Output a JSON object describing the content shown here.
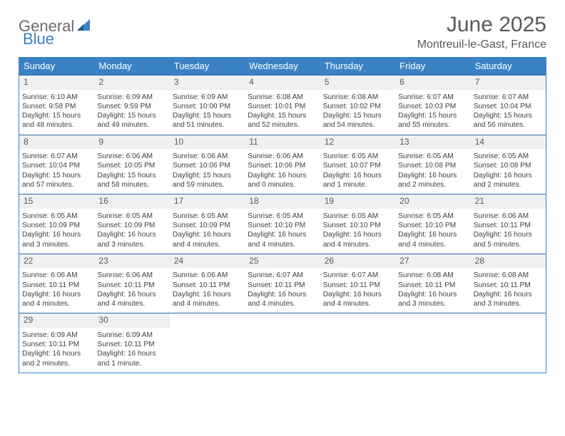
{
  "brand": {
    "part1": "General",
    "part2": "Blue"
  },
  "title": "June 2025",
  "location": "Montreuil-le-Gast, France",
  "colors": {
    "header_bg": "#3b82c4",
    "header_text": "#ffffff",
    "border": "#2b6ca8",
    "daynum_bg": "#eef0f1",
    "text": "#404040",
    "title_color": "#595959"
  },
  "weekdays": [
    "Sunday",
    "Monday",
    "Tuesday",
    "Wednesday",
    "Thursday",
    "Friday",
    "Saturday"
  ],
  "weeks": [
    [
      {
        "n": "1",
        "sr": "Sunrise: 6:10 AM",
        "ss": "Sunset: 9:58 PM",
        "dl": "Daylight: 15 hours and 48 minutes."
      },
      {
        "n": "2",
        "sr": "Sunrise: 6:09 AM",
        "ss": "Sunset: 9:59 PM",
        "dl": "Daylight: 15 hours and 49 minutes."
      },
      {
        "n": "3",
        "sr": "Sunrise: 6:09 AM",
        "ss": "Sunset: 10:00 PM",
        "dl": "Daylight: 15 hours and 51 minutes."
      },
      {
        "n": "4",
        "sr": "Sunrise: 6:08 AM",
        "ss": "Sunset: 10:01 PM",
        "dl": "Daylight: 15 hours and 52 minutes."
      },
      {
        "n": "5",
        "sr": "Sunrise: 6:08 AM",
        "ss": "Sunset: 10:02 PM",
        "dl": "Daylight: 15 hours and 54 minutes."
      },
      {
        "n": "6",
        "sr": "Sunrise: 6:07 AM",
        "ss": "Sunset: 10:03 PM",
        "dl": "Daylight: 15 hours and 55 minutes."
      },
      {
        "n": "7",
        "sr": "Sunrise: 6:07 AM",
        "ss": "Sunset: 10:04 PM",
        "dl": "Daylight: 15 hours and 56 minutes."
      }
    ],
    [
      {
        "n": "8",
        "sr": "Sunrise: 6:07 AM",
        "ss": "Sunset: 10:04 PM",
        "dl": "Daylight: 15 hours and 57 minutes."
      },
      {
        "n": "9",
        "sr": "Sunrise: 6:06 AM",
        "ss": "Sunset: 10:05 PM",
        "dl": "Daylight: 15 hours and 58 minutes."
      },
      {
        "n": "10",
        "sr": "Sunrise: 6:06 AM",
        "ss": "Sunset: 10:06 PM",
        "dl": "Daylight: 15 hours and 59 minutes."
      },
      {
        "n": "11",
        "sr": "Sunrise: 6:06 AM",
        "ss": "Sunset: 10:06 PM",
        "dl": "Daylight: 16 hours and 0 minutes."
      },
      {
        "n": "12",
        "sr": "Sunrise: 6:05 AM",
        "ss": "Sunset: 10:07 PM",
        "dl": "Daylight: 16 hours and 1 minute."
      },
      {
        "n": "13",
        "sr": "Sunrise: 6:05 AM",
        "ss": "Sunset: 10:08 PM",
        "dl": "Daylight: 16 hours and 2 minutes."
      },
      {
        "n": "14",
        "sr": "Sunrise: 6:05 AM",
        "ss": "Sunset: 10:08 PM",
        "dl": "Daylight: 16 hours and 2 minutes."
      }
    ],
    [
      {
        "n": "15",
        "sr": "Sunrise: 6:05 AM",
        "ss": "Sunset: 10:09 PM",
        "dl": "Daylight: 16 hours and 3 minutes."
      },
      {
        "n": "16",
        "sr": "Sunrise: 6:05 AM",
        "ss": "Sunset: 10:09 PM",
        "dl": "Daylight: 16 hours and 3 minutes."
      },
      {
        "n": "17",
        "sr": "Sunrise: 6:05 AM",
        "ss": "Sunset: 10:09 PM",
        "dl": "Daylight: 16 hours and 4 minutes."
      },
      {
        "n": "18",
        "sr": "Sunrise: 6:05 AM",
        "ss": "Sunset: 10:10 PM",
        "dl": "Daylight: 16 hours and 4 minutes."
      },
      {
        "n": "19",
        "sr": "Sunrise: 6:05 AM",
        "ss": "Sunset: 10:10 PM",
        "dl": "Daylight: 16 hours and 4 minutes."
      },
      {
        "n": "20",
        "sr": "Sunrise: 6:05 AM",
        "ss": "Sunset: 10:10 PM",
        "dl": "Daylight: 16 hours and 4 minutes."
      },
      {
        "n": "21",
        "sr": "Sunrise: 6:06 AM",
        "ss": "Sunset: 10:11 PM",
        "dl": "Daylight: 16 hours and 5 minutes."
      }
    ],
    [
      {
        "n": "22",
        "sr": "Sunrise: 6:06 AM",
        "ss": "Sunset: 10:11 PM",
        "dl": "Daylight: 16 hours and 4 minutes."
      },
      {
        "n": "23",
        "sr": "Sunrise: 6:06 AM",
        "ss": "Sunset: 10:11 PM",
        "dl": "Daylight: 16 hours and 4 minutes."
      },
      {
        "n": "24",
        "sr": "Sunrise: 6:06 AM",
        "ss": "Sunset: 10:11 PM",
        "dl": "Daylight: 16 hours and 4 minutes."
      },
      {
        "n": "25",
        "sr": "Sunrise: 6:07 AM",
        "ss": "Sunset: 10:11 PM",
        "dl": "Daylight: 16 hours and 4 minutes."
      },
      {
        "n": "26",
        "sr": "Sunrise: 6:07 AM",
        "ss": "Sunset: 10:11 PM",
        "dl": "Daylight: 16 hours and 4 minutes."
      },
      {
        "n": "27",
        "sr": "Sunrise: 6:08 AM",
        "ss": "Sunset: 10:11 PM",
        "dl": "Daylight: 16 hours and 3 minutes."
      },
      {
        "n": "28",
        "sr": "Sunrise: 6:08 AM",
        "ss": "Sunset: 10:11 PM",
        "dl": "Daylight: 16 hours and 3 minutes."
      }
    ],
    [
      {
        "n": "29",
        "sr": "Sunrise: 6:09 AM",
        "ss": "Sunset: 10:11 PM",
        "dl": "Daylight: 16 hours and 2 minutes."
      },
      {
        "n": "30",
        "sr": "Sunrise: 6:09 AM",
        "ss": "Sunset: 10:11 PM",
        "dl": "Daylight: 16 hours and 1 minute."
      },
      null,
      null,
      null,
      null,
      null
    ]
  ]
}
